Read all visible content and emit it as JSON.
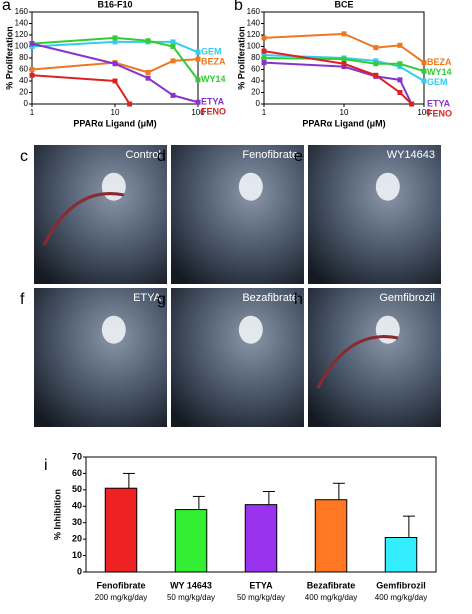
{
  "chart_data": [
    {
      "type": "line",
      "panel": "a",
      "title": "B16-F10",
      "ylabel": "% Proliferation",
      "xlabel": "PPARα Ligand (μM)",
      "xscale": "log",
      "xlim": [
        1,
        100
      ],
      "xticks": [
        1,
        10,
        100
      ],
      "ylim": [
        0,
        160
      ],
      "yticks": [
        0,
        20,
        40,
        60,
        80,
        100,
        120,
        140,
        160
      ],
      "series": [
        {
          "name": "GEM",
          "color": "#33ccee",
          "x": [
            1,
            10,
            25,
            50,
            100
          ],
          "values": [
            100,
            108,
            108,
            108,
            90
          ]
        },
        {
          "name": "BEZA",
          "color": "#ee7722",
          "x": [
            1,
            10,
            25,
            50,
            100
          ],
          "values": [
            60,
            72,
            55,
            75,
            78
          ]
        },
        {
          "name": "WY14",
          "color": "#33cc33",
          "x": [
            1,
            10,
            25,
            50,
            100
          ],
          "values": [
            105,
            115,
            110,
            100,
            42
          ]
        },
        {
          "name": "ETYA",
          "color": "#8833cc",
          "x": [
            1,
            10,
            25,
            50,
            100
          ],
          "values": [
            105,
            70,
            45,
            15,
            3
          ]
        },
        {
          "name": "FENO",
          "color": "#dd2222",
          "x": [
            1,
            10,
            15
          ],
          "values": [
            50,
            40,
            0
          ]
        }
      ]
    },
    {
      "type": "line",
      "panel": "b",
      "title": "BCE",
      "ylabel": "% Proliferation",
      "xlabel": "PPARα Ligand (μM)",
      "xscale": "log",
      "xlim": [
        1,
        100
      ],
      "xticks": [
        1,
        10,
        100
      ],
      "ylim": [
        0,
        160
      ],
      "yticks": [
        0,
        20,
        40,
        60,
        80,
        100,
        120,
        140,
        160
      ],
      "series": [
        {
          "name": "BEZA",
          "color": "#ee7722",
          "x": [
            1,
            10,
            25,
            50,
            100
          ],
          "values": [
            115,
            122,
            98,
            102,
            72
          ]
        },
        {
          "name": "GEM",
          "color": "#33ccee",
          "x": [
            1,
            10,
            25,
            50,
            100
          ],
          "values": [
            85,
            80,
            75,
            65,
            40
          ]
        },
        {
          "name": "WY14",
          "color": "#33cc33",
          "x": [
            1,
            10,
            25,
            50,
            100
          ],
          "values": [
            80,
            78,
            70,
            70,
            57
          ]
        },
        {
          "name": "ETYA",
          "color": "#8833cc",
          "x": [
            1,
            10,
            25,
            50,
            70
          ],
          "values": [
            72,
            65,
            48,
            42,
            0
          ]
        },
        {
          "name": "FENO",
          "color": "#dd2222",
          "x": [
            1,
            10,
            25,
            50,
            70
          ],
          "values": [
            92,
            70,
            50,
            20,
            0
          ]
        }
      ]
    },
    {
      "type": "bar",
      "panel": "i",
      "ylabel": "% Inhibition",
      "ylim": [
        0,
        70
      ],
      "yticks": [
        0,
        10,
        20,
        30,
        40,
        50,
        60,
        70
      ],
      "categories": [
        "Fenofibrate",
        "WY 14643",
        "ETYA",
        "Bezafibrate",
        "Gemfibrozil"
      ],
      "doses": [
        "200 mg/kg/day",
        "50 mg/kg/day",
        "50 mg/kg/day",
        "400 mg/kg/day",
        "400 mg/kg/day"
      ],
      "values": [
        51,
        38,
        41,
        44,
        21
      ],
      "errors": [
        9,
        8,
        8,
        10,
        13
      ],
      "colors": [
        "#ee2222",
        "#33ee33",
        "#9933ee",
        "#ff7722",
        "#33eeff"
      ]
    }
  ],
  "photos": [
    {
      "letter": "c",
      "label": "Control"
    },
    {
      "letter": "d",
      "label": "Fenofibrate"
    },
    {
      "letter": "e",
      "label": "WY14643"
    },
    {
      "letter": "f",
      "label": "ETYA"
    },
    {
      "letter": "g",
      "label": "Bezafibrate"
    },
    {
      "letter": "h",
      "label": "Gemfibrozil"
    }
  ]
}
